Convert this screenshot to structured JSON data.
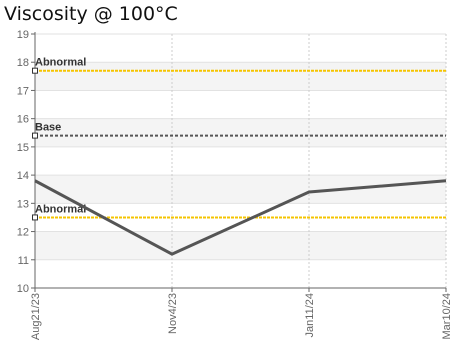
{
  "chart_data": {
    "type": "line",
    "title": "Viscosity @ 100°C",
    "xlabel": "",
    "ylabel": "",
    "categories": [
      "Aug21/23",
      "Nov4/23",
      "Jan11/24",
      "Mar10/24"
    ],
    "series": [
      {
        "values": [
          13.8,
          11.2,
          13.4,
          13.8
        ],
        "color": "#555555"
      }
    ],
    "reference_lines": [
      {
        "label": "Abnormal",
        "value": 17.7,
        "color": "#f5c400"
      },
      {
        "label": "Base",
        "value": 15.4,
        "color": "#555555"
      },
      {
        "label": "Abnormal",
        "value": 12.5,
        "color": "#f5c400"
      }
    ],
    "ylim": [
      10,
      19
    ],
    "yticks": [
      "10",
      "11",
      "12",
      "13",
      "14",
      "15",
      "16",
      "17",
      "18",
      "19"
    ],
    "grid": true,
    "legend": "none"
  }
}
